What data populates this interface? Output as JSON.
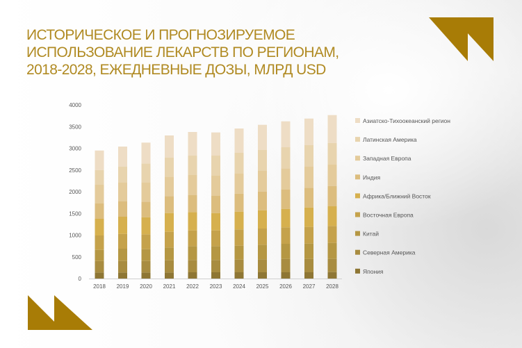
{
  "title_lines": [
    "ИСТОРИЧЕСКОЕ И ПРОГНОЗИРУЕМОЕ",
    "ИСПОЛЬЗОВАНИЕ ЛЕКАРСТВ ПО РЕГИОНАМ,",
    "2018-2028, ЕЖЕДНЕВНЫЕ ДОЗЫ, МЛРД USD"
  ],
  "accent_color": "#a87c06",
  "chart_data": {
    "type": "bar",
    "stacked": true,
    "title": "ИСТОРИЧЕСКОЕ И ПРОГНОЗИРУЕМОЕ ИСПОЛЬЗОВАНИЕ ЛЕКАРСТВ ПО РЕГИОНАМ, 2018-2028, ЕЖЕДНЕВНЫЕ ДОЗЫ, МЛРД USD",
    "categories": [
      "2018",
      "2019",
      "2020",
      "2021",
      "2022",
      "2023",
      "2024",
      "2025",
      "2026",
      "2027",
      "2028"
    ],
    "ylim": [
      0,
      4000
    ],
    "yticks": [
      0,
      500,
      1000,
      1500,
      2000,
      2500,
      3000,
      3500,
      4000
    ],
    "grid": false,
    "legend_position": "right",
    "series": [
      {
        "name": "Япония",
        "color": "#8e7634",
        "values": [
          139,
          139,
          139,
          139,
          144,
          144,
          144,
          144,
          144,
          144,
          149
        ]
      },
      {
        "name": "Северная Америка",
        "color": "#a88c40",
        "values": [
          266,
          266,
          266,
          282,
          283,
          283,
          293,
          299,
          309,
          309,
          304
        ]
      },
      {
        "name": "Китай",
        "color": "#b59743",
        "values": [
          256,
          283,
          272,
          294,
          320,
          320,
          320,
          336,
          347,
          352,
          368
        ]
      },
      {
        "name": "Восточная Европа",
        "color": "#c5a24b",
        "values": [
          331,
          341,
          342,
          362,
          362,
          362,
          374,
          373,
          379,
          384,
          390
        ]
      },
      {
        "name": "Африка/Ближний Восток",
        "color": "#d6b04e",
        "values": [
          384,
          395,
          394,
          432,
          422,
          400,
          410,
          421,
          426,
          448,
          453
        ]
      },
      {
        "name": "Индия",
        "color": "#dcbd7e",
        "values": [
          352,
          352,
          358,
          390,
          389,
          395,
          416,
          432,
          443,
          454,
          469
        ]
      },
      {
        "name": "Западная Европа",
        "color": "#e4cb9b",
        "values": [
          432,
          443,
          448,
          448,
          464,
          464,
          459,
          475,
          491,
          485,
          491
        ]
      },
      {
        "name": "Латинская Америка",
        "color": "#e8d4ae",
        "values": [
          341,
          362,
          432,
          442,
          453,
          464,
          480,
          480,
          485,
          496,
          501
        ]
      },
      {
        "name": "Азиатско-Тихоокеанский регион",
        "color": "#eeddc5",
        "values": [
          448,
          459,
          480,
          507,
          539,
          533,
          560,
          581,
          597,
          613,
          640
        ]
      }
    ]
  }
}
